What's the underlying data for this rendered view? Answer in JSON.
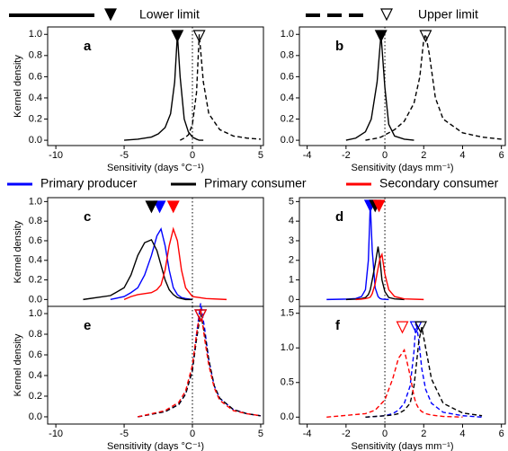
{
  "chart_data": [
    {
      "type": "line",
      "label": "a",
      "xlabel": "Sensitivity (days °C⁻¹)",
      "ylabel": "Kernel density",
      "xlim": [
        -10.6,
        5.2
      ],
      "ylim": [
        -0.05,
        1.07
      ],
      "xticks": [
        -10,
        -5,
        0,
        5
      ],
      "yticks": [
        {
          "value": 0,
          "label": "0.0"
        },
        0.2,
        0.4,
        0.6,
        0.8,
        {
          "value": 1,
          "label": "1.0"
        }
      ],
      "x": [
        -5,
        -4,
        -3,
        -2.5,
        -2,
        -1.6,
        -1.3,
        -1.1,
        -0.9,
        -0.6,
        -0.3,
        0,
        0.3,
        0.5,
        0.8,
        1.2,
        2,
        3,
        4,
        5
      ],
      "series": [
        {
          "name": "Lower limit",
          "color": "#000000",
          "line_style": "solid",
          "marker": -1.1,
          "values": [
            0.0,
            0.01,
            0.03,
            0.06,
            0.12,
            0.25,
            0.55,
            1.0,
            0.6,
            0.2,
            0.08,
            0.03,
            0.01,
            0.0,
            0.0,
            null,
            null,
            null,
            null,
            null
          ]
        },
        {
          "name": "Upper limit",
          "color": "#000000",
          "line_style": "dashed",
          "marker": 0.5,
          "values": [
            null,
            null,
            null,
            null,
            null,
            null,
            null,
            null,
            0.0,
            0.02,
            0.05,
            0.15,
            0.45,
            1.0,
            0.55,
            0.25,
            0.1,
            0.04,
            0.02,
            0.01
          ]
        }
      ]
    },
    {
      "type": "line",
      "label": "b",
      "xlabel": "Sensitivity (days mm⁻¹)",
      "xlim": [
        -4.4,
        6.2
      ],
      "ylim": [
        -0.05,
        1.07
      ],
      "xticks": [
        -4,
        -2,
        0,
        2,
        4,
        6
      ],
      "yticks": [
        {
          "value": 0,
          "label": "0.0"
        },
        0.2,
        0.4,
        0.6,
        0.8,
        {
          "value": 1,
          "label": "1.0"
        }
      ],
      "x": [
        -2,
        -1.5,
        -1,
        -0.7,
        -0.4,
        -0.2,
        0,
        0.2,
        0.5,
        1,
        1.5,
        1.8,
        2,
        2.1,
        2.3,
        2.6,
        3,
        4,
        5,
        6
      ],
      "series": [
        {
          "name": "Lower limit",
          "color": "#000000",
          "line_style": "solid",
          "marker": -0.2,
          "values": [
            0.0,
            0.02,
            0.08,
            0.2,
            0.55,
            1.0,
            0.5,
            0.15,
            0.04,
            0.01,
            0.0,
            null,
            null,
            null,
            null,
            null,
            null,
            null,
            null,
            null
          ]
        },
        {
          "name": "Upper limit",
          "color": "#000000",
          "line_style": "dashed",
          "marker": 2.1,
          "values": [
            null,
            null,
            0.0,
            0.01,
            0.02,
            0.03,
            0.05,
            0.07,
            0.1,
            0.18,
            0.35,
            0.6,
            0.95,
            1.0,
            0.8,
            0.4,
            0.2,
            0.07,
            0.03,
            0.01
          ]
        }
      ]
    },
    {
      "type": "line",
      "label": "c",
      "ylabel": "Kernel density",
      "xlim": [
        -10.6,
        5.2
      ],
      "ylim": [
        -0.07,
        1.04
      ],
      "xticks": [
        -10,
        -5,
        0,
        5
      ],
      "yticks": [
        {
          "value": 0,
          "label": "0.0"
        },
        0.2,
        0.4,
        0.6,
        0.8,
        {
          "value": 1,
          "label": "1.0"
        }
      ],
      "x": [
        -8,
        -6,
        -5,
        -4.5,
        -4,
        -3.5,
        -3,
        -2.6,
        -2.3,
        -2,
        -1.7,
        -1.4,
        -1.1,
        -0.8,
        -0.5,
        0,
        1,
        2.5
      ],
      "series": [
        {
          "name": "Primary producer",
          "color": "#0000ff",
          "line_style": "solid",
          "marker": -2.4,
          "values": [
            null,
            0.0,
            0.03,
            0.07,
            0.12,
            0.25,
            0.45,
            0.65,
            0.72,
            0.55,
            0.3,
            0.12,
            0.05,
            0.02,
            0.01,
            0.0,
            null,
            null
          ]
        },
        {
          "name": "Primary consumer",
          "color": "#000000",
          "line_style": "solid",
          "marker": -3.0,
          "values": [
            0.0,
            0.04,
            0.12,
            0.25,
            0.45,
            0.58,
            0.61,
            0.5,
            0.35,
            0.2,
            0.1,
            0.05,
            0.02,
            0.01,
            0.0,
            0.0,
            null,
            null
          ]
        },
        {
          "name": "Secondary consumer",
          "color": "#ff0000",
          "line_style": "solid",
          "marker": -1.4,
          "values": [
            null,
            null,
            0.0,
            0.03,
            0.05,
            0.06,
            0.07,
            0.1,
            0.15,
            0.3,
            0.55,
            0.72,
            0.6,
            0.3,
            0.12,
            0.03,
            0.01,
            0.0
          ]
        }
      ]
    },
    {
      "type": "line",
      "label": "d",
      "xlim": [
        -4.4,
        6.2
      ],
      "ylim": [
        -0.35,
        5.2
      ],
      "xticks": [
        -4,
        -2,
        0,
        2,
        4,
        6
      ],
      "yticks": [
        0,
        1,
        2,
        3,
        4,
        5
      ],
      "x": [
        -3,
        -2,
        -1.5,
        -1.2,
        -1,
        -0.85,
        -0.75,
        -0.65,
        -0.5,
        -0.35,
        -0.25,
        -0.15,
        0,
        0.2,
        0.5,
        1,
        2
      ],
      "series": [
        {
          "name": "Primary producer",
          "color": "#0000ff",
          "line_style": "solid",
          "marker": -0.75,
          "values": [
            0.0,
            0.02,
            0.05,
            0.15,
            0.5,
            2.0,
            4.9,
            2.5,
            0.6,
            0.15,
            0.05,
            0.02,
            0.01,
            0.0,
            null,
            null,
            null
          ]
        },
        {
          "name": "Primary consumer",
          "color": "#000000",
          "line_style": "solid",
          "marker": -0.5,
          "values": [
            null,
            0.0,
            0.02,
            0.05,
            0.1,
            0.25,
            0.5,
            1.0,
            1.8,
            2.7,
            2.0,
            1.0,
            0.4,
            0.1,
            0.03,
            0.0,
            null
          ]
        },
        {
          "name": "Secondary consumer",
          "color": "#ff0000",
          "line_style": "solid",
          "marker": -0.3,
          "values": [
            null,
            null,
            0.0,
            0.02,
            0.05,
            0.08,
            0.12,
            0.3,
            0.8,
            1.6,
            2.1,
            2.3,
            1.3,
            0.5,
            0.15,
            0.03,
            0.0
          ]
        }
      ]
    },
    {
      "type": "line",
      "label": "e",
      "xlabel": "Sensitivity (days °C⁻¹)",
      "ylabel": "Kernel density",
      "xlim": [
        -10.6,
        5.2
      ],
      "ylim": [
        -0.07,
        1.07
      ],
      "xticks": [
        -10,
        -5,
        0,
        5
      ],
      "yticks": [
        {
          "value": 0,
          "label": "0.0"
        },
        0.2,
        0.4,
        0.6,
        0.8,
        {
          "value": 1,
          "label": "1.0"
        }
      ],
      "x": [
        -4,
        -2,
        -1,
        -0.5,
        0,
        0.3,
        0.6,
        0.9,
        1.2,
        1.6,
        2,
        3,
        4,
        5
      ],
      "series": [
        {
          "name": "Primary producer",
          "color": "#0000ff",
          "line_style": "dashed",
          "marker": 0.6,
          "values": [
            0.0,
            0.05,
            0.12,
            0.22,
            0.45,
            0.8,
            1.1,
            0.85,
            0.55,
            0.3,
            0.18,
            0.07,
            0.03,
            0.01
          ]
        },
        {
          "name": "Primary consumer",
          "color": "#000000",
          "line_style": "dashed",
          "marker": 0.6,
          "values": [
            0.0,
            0.05,
            0.12,
            0.22,
            0.45,
            0.75,
            1.0,
            0.8,
            0.55,
            0.3,
            0.18,
            0.07,
            0.03,
            0.01
          ]
        },
        {
          "name": "Secondary consumer",
          "color": "#ff0000",
          "line_style": "dashed",
          "marker": 0.6,
          "values": [
            0.0,
            0.06,
            0.14,
            0.25,
            0.5,
            0.8,
            1.05,
            0.75,
            0.5,
            0.28,
            0.16,
            0.06,
            0.03,
            0.01
          ]
        }
      ]
    },
    {
      "type": "line",
      "label": "f",
      "xlabel": "Sensitivity (days mm⁻¹)",
      "xlim": [
        -4.4,
        6.2
      ],
      "ylim": [
        -0.1,
        1.6
      ],
      "xticks": [
        -4,
        -2,
        0,
        2,
        4,
        6
      ],
      "yticks": [
        {
          "value": 0,
          "label": "0.0"
        },
        0.5,
        {
          "value": 1,
          "label": "1.0"
        },
        1.5
      ],
      "x": [
        -3,
        -1,
        -0.5,
        0,
        0.4,
        0.7,
        1.0,
        1.3,
        1.5,
        1.6,
        1.75,
        1.9,
        2.1,
        2.4,
        3,
        4,
        5
      ],
      "series": [
        {
          "name": "Primary producer",
          "color": "#0000ff",
          "line_style": "dashed",
          "marker": 1.6,
          "values": [
            null,
            0.0,
            0.01,
            0.02,
            0.05,
            0.1,
            0.2,
            0.45,
            0.95,
            1.38,
            1.1,
            0.7,
            0.4,
            0.2,
            0.07,
            0.02,
            0.0
          ]
        },
        {
          "name": "Primary consumer",
          "color": "#000000",
          "line_style": "dashed",
          "marker": 1.85,
          "values": [
            null,
            0.0,
            0.01,
            0.02,
            0.03,
            0.05,
            0.1,
            0.2,
            0.45,
            0.7,
            1.1,
            1.3,
            1.0,
            0.55,
            0.2,
            0.06,
            0.02
          ]
        },
        {
          "name": "Secondary consumer",
          "color": "#ff0000",
          "line_style": "dashed",
          "marker": 0.9,
          "values": [
            0.0,
            0.05,
            0.1,
            0.25,
            0.55,
            0.85,
            0.97,
            0.6,
            0.3,
            0.2,
            0.12,
            0.08,
            0.05,
            0.03,
            0.01,
            0.0,
            null
          ]
        }
      ]
    }
  ]
}
